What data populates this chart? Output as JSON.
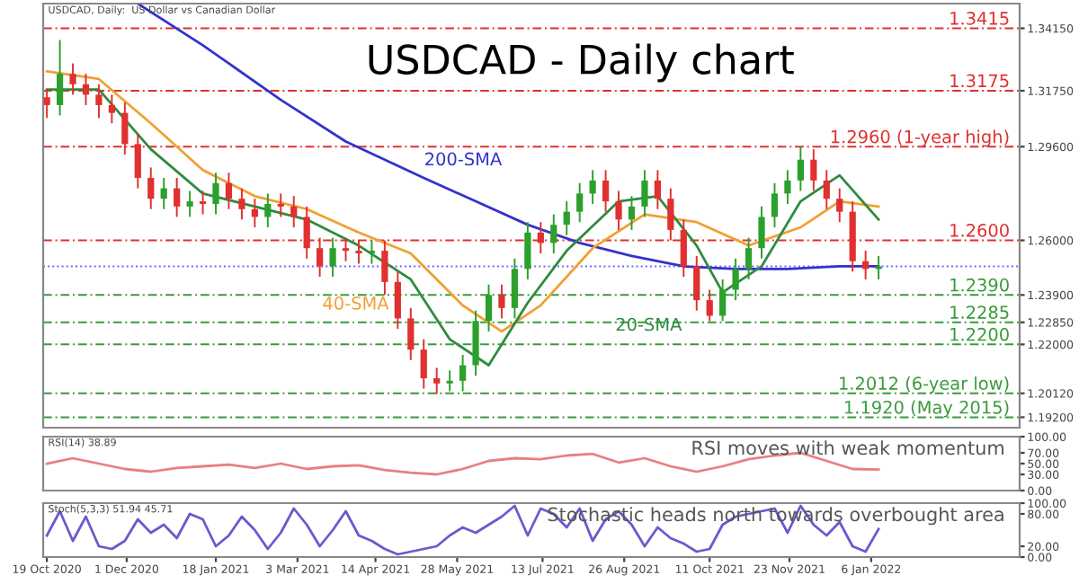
{
  "chart_data": [
    {
      "type": "candlestick",
      "title": "USDCAD - Daily chart",
      "subtitle": "USDCAD, Daily:  US Dollar vs Canadian Dollar",
      "tick_labels": "y",
      "grid": false,
      "legend": false,
      "xlim": [
        "2020-10-17",
        "2022-03-27"
      ],
      "ylim": [
        1.188,
        1.351
      ],
      "yticks": [
        {
          "value": 1.3415,
          "label": "1.34150"
        },
        {
          "value": 1.3175,
          "label": "1.31750"
        },
        {
          "value": 1.296,
          "label": "1.29600"
        },
        {
          "value": 1.26,
          "label": "1.26000"
        },
        {
          "value": 1.239,
          "label": "1.23900"
        },
        {
          "value": 1.2285,
          "label": "1.22850"
        },
        {
          "value": 1.22,
          "label": "1.22000"
        },
        {
          "value": 1.2012,
          "label": "1.20120"
        },
        {
          "value": 1.192,
          "label": "1.19200"
        }
      ],
      "x": [
        "2020-10-19",
        "2020-10-26",
        "2020-11-02",
        "2020-11-09",
        "2020-11-16",
        "2020-11-23",
        "2020-11-30",
        "2020-12-07",
        "2020-12-14",
        "2020-12-21",
        "2020-12-28",
        "2021-01-04",
        "2021-01-11",
        "2021-01-18",
        "2021-01-25",
        "2021-02-01",
        "2021-02-08",
        "2021-02-15",
        "2021-02-22",
        "2021-03-01",
        "2021-03-08",
        "2021-03-15",
        "2021-03-22",
        "2021-03-29",
        "2021-04-05",
        "2021-04-12",
        "2021-04-19",
        "2021-04-26",
        "2021-05-03",
        "2021-05-10",
        "2021-05-17",
        "2021-05-24",
        "2021-05-31",
        "2021-06-07",
        "2021-06-14",
        "2021-06-21",
        "2021-06-28",
        "2021-07-05",
        "2021-07-12",
        "2021-07-19",
        "2021-07-26",
        "2021-08-02",
        "2021-08-09",
        "2021-08-16",
        "2021-08-23",
        "2021-08-30",
        "2021-09-06",
        "2021-09-13",
        "2021-09-20",
        "2021-09-27",
        "2021-10-04",
        "2021-10-11",
        "2021-10-18",
        "2021-10-25",
        "2021-11-01",
        "2021-11-08",
        "2021-11-15",
        "2021-11-22",
        "2021-11-29",
        "2021-12-06",
        "2021-12-13",
        "2021-12-20",
        "2021-12-27",
        "2022-01-03",
        "2022-01-10"
      ],
      "ohlc": [
        [
          1.315,
          1.318,
          1.307,
          1.312
        ],
        [
          1.312,
          1.337,
          1.308,
          1.324
        ],
        [
          1.324,
          1.328,
          1.316,
          1.32
        ],
        [
          1.32,
          1.324,
          1.312,
          1.316
        ],
        [
          1.316,
          1.32,
          1.307,
          1.312
        ],
        [
          1.312,
          1.316,
          1.305,
          1.309
        ],
        [
          1.309,
          1.313,
          1.293,
          1.297
        ],
        [
          1.297,
          1.301,
          1.28,
          1.284
        ],
        [
          1.284,
          1.288,
          1.272,
          1.276
        ],
        [
          1.276,
          1.284,
          1.272,
          1.28
        ],
        [
          1.28,
          1.284,
          1.269,
          1.273
        ],
        [
          1.273,
          1.279,
          1.269,
          1.275
        ],
        [
          1.275,
          1.279,
          1.27,
          1.274
        ],
        [
          1.274,
          1.286,
          1.27,
          1.282
        ],
        [
          1.282,
          1.286,
          1.272,
          1.276
        ],
        [
          1.276,
          1.28,
          1.268,
          1.272
        ],
        [
          1.272,
          1.276,
          1.265,
          1.269
        ],
        [
          1.269,
          1.278,
          1.265,
          1.274
        ],
        [
          1.274,
          1.278,
          1.269,
          1.273
        ],
        [
          1.273,
          1.277,
          1.265,
          1.269
        ],
        [
          1.269,
          1.273,
          1.253,
          1.257
        ],
        [
          1.257,
          1.261,
          1.246,
          1.25
        ],
        [
          1.25,
          1.261,
          1.246,
          1.257
        ],
        [
          1.257,
          1.261,
          1.252,
          1.256
        ],
        [
          1.256,
          1.26,
          1.251,
          1.255
        ],
        [
          1.255,
          1.26,
          1.251,
          1.256
        ],
        [
          1.256,
          1.26,
          1.239,
          1.244
        ],
        [
          1.244,
          1.248,
          1.226,
          1.23
        ],
        [
          1.23,
          1.234,
          1.214,
          1.218
        ],
        [
          1.218,
          1.222,
          1.203,
          1.207
        ],
        [
          1.207,
          1.211,
          1.201,
          1.205
        ],
        [
          1.205,
          1.21,
          1.202,
          1.206
        ],
        [
          1.206,
          1.216,
          1.202,
          1.212
        ],
        [
          1.212,
          1.233,
          1.208,
          1.229
        ],
        [
          1.229,
          1.243,
          1.225,
          1.239
        ],
        [
          1.239,
          1.243,
          1.23,
          1.234
        ],
        [
          1.234,
          1.253,
          1.23,
          1.249
        ],
        [
          1.249,
          1.267,
          1.245,
          1.263
        ],
        [
          1.263,
          1.267,
          1.255,
          1.259
        ],
        [
          1.259,
          1.27,
          1.255,
          1.266
        ],
        [
          1.266,
          1.275,
          1.262,
          1.271
        ],
        [
          1.271,
          1.282,
          1.267,
          1.278
        ],
        [
          1.278,
          1.287,
          1.274,
          1.283
        ],
        [
          1.283,
          1.287,
          1.271,
          1.275
        ],
        [
          1.275,
          1.279,
          1.264,
          1.268
        ],
        [
          1.268,
          1.277,
          1.264,
          1.273
        ],
        [
          1.273,
          1.287,
          1.269,
          1.283
        ],
        [
          1.283,
          1.287,
          1.272,
          1.276
        ],
        [
          1.276,
          1.28,
          1.26,
          1.264
        ],
        [
          1.264,
          1.268,
          1.246,
          1.25
        ],
        [
          1.25,
          1.254,
          1.233,
          1.237
        ],
        [
          1.237,
          1.241,
          1.229,
          1.231
        ],
        [
          1.231,
          1.245,
          1.229,
          1.241
        ],
        [
          1.241,
          1.253,
          1.237,
          1.249
        ],
        [
          1.249,
          1.261,
          1.245,
          1.257
        ],
        [
          1.257,
          1.273,
          1.253,
          1.269
        ],
        [
          1.269,
          1.282,
          1.265,
          1.278
        ],
        [
          1.278,
          1.287,
          1.274,
          1.283
        ],
        [
          1.283,
          1.296,
          1.279,
          1.291
        ],
        [
          1.291,
          1.295,
          1.279,
          1.283
        ],
        [
          1.283,
          1.287,
          1.272,
          1.276
        ],
        [
          1.276,
          1.28,
          1.267,
          1.271
        ],
        [
          1.271,
          1.275,
          1.248,
          1.252
        ],
        [
          1.252,
          1.256,
          1.245,
          1.249
        ],
        [
          1.249,
          1.254,
          1.245,
          1.25
        ]
      ],
      "colors": [
        "#e0302f",
        "#2ca02c",
        "#e0302f",
        "#e0302f",
        "#e0302f",
        "#e0302f",
        "#e0302f",
        "#e0302f",
        "#e0302f",
        "#2ca02c",
        "#e0302f",
        "#2ca02c",
        "#e0302f",
        "#2ca02c",
        "#e0302f",
        "#e0302f",
        "#e0302f",
        "#2ca02c",
        "#e0302f",
        "#e0302f",
        "#e0302f",
        "#e0302f",
        "#2ca02c",
        "#e0302f",
        "#e0302f",
        "#2ca02c",
        "#e0302f",
        "#e0302f",
        "#e0302f",
        "#e0302f",
        "#e0302f",
        "#2ca02c",
        "#2ca02c",
        "#2ca02c",
        "#2ca02c",
        "#e0302f",
        "#2ca02c",
        "#2ca02c",
        "#e0302f",
        "#2ca02c",
        "#2ca02c",
        "#2ca02c",
        "#2ca02c",
        "#e0302f",
        "#e0302f",
        "#2ca02c",
        "#2ca02c",
        "#e0302f",
        "#e0302f",
        "#e0302f",
        "#e0302f",
        "#e0302f",
        "#2ca02c",
        "#2ca02c",
        "#2ca02c",
        "#2ca02c",
        "#2ca02c",
        "#2ca02c",
        "#2ca02c",
        "#e0302f",
        "#e0302f",
        "#e0302f",
        "#e0302f",
        "#e0302f",
        "#2ca02c"
      ],
      "series": [
        {
          "type": "line",
          "color": "#3333cc",
          "x": [
            "2020-12-07",
            "2021-01-11",
            "2021-02-22",
            "2021-03-29",
            "2021-05-10",
            "2021-06-07",
            "2021-07-05",
            "2021-08-02",
            "2021-08-30",
            "2021-09-27",
            "2021-10-25",
            "2021-11-22",
            "2021-12-20",
            "2022-01-10"
          ],
          "values": [
            1.351,
            1.335,
            1.314,
            1.298,
            1.284,
            1.275,
            1.266,
            1.259,
            1.254,
            1.25,
            1.249,
            1.249,
            1.25,
            1.25
          ]
        },
        {
          "type": "line",
          "color": "#f0a030",
          "x": [
            "2020-10-19",
            "2020-11-16",
            "2020-12-14",
            "2021-01-11",
            "2021-02-08",
            "2021-03-08",
            "2021-04-05",
            "2021-05-03",
            "2021-05-31",
            "2021-06-21",
            "2021-07-12",
            "2021-08-09",
            "2021-09-06",
            "2021-10-04",
            "2021-11-01",
            "2021-11-29",
            "2021-12-20",
            "2022-01-10"
          ],
          "values": [
            1.325,
            1.322,
            1.305,
            1.287,
            1.277,
            1.272,
            1.263,
            1.255,
            1.235,
            1.225,
            1.235,
            1.257,
            1.27,
            1.267,
            1.258,
            1.265,
            1.275,
            1.273
          ]
        },
        {
          "type": "line",
          "color": "#2e8b3e",
          "x": [
            "2020-10-19",
            "2020-11-16",
            "2020-12-14",
            "2021-01-11",
            "2021-02-08",
            "2021-03-08",
            "2021-04-05",
            "2021-05-03",
            "2021-05-24",
            "2021-06-14",
            "2021-07-05",
            "2021-07-26",
            "2021-08-23",
            "2021-09-13",
            "2021-10-04",
            "2021-10-18",
            "2021-11-08",
            "2021-11-29",
            "2021-12-20",
            "2022-01-10"
          ],
          "values": [
            1.318,
            1.318,
            1.295,
            1.278,
            1.273,
            1.268,
            1.258,
            1.245,
            1.222,
            1.212,
            1.236,
            1.256,
            1.275,
            1.277,
            1.258,
            1.24,
            1.25,
            1.275,
            1.285,
            1.268
          ]
        }
      ],
      "annotations": [
        "200-SMA",
        "40-SMA",
        "20-SMA"
      ],
      "ref_lines": [
        {
          "axis": "y",
          "value": 1.3415,
          "label": "1.3415",
          "color": "#e0302f",
          "line_style": "dashed"
        },
        {
          "axis": "y",
          "value": 1.3175,
          "label": "1.3175",
          "color": "#e0302f",
          "line_style": "dashed"
        },
        {
          "axis": "y",
          "value": 1.296,
          "label": "1.2960 (1-year high)",
          "color": "#e0302f",
          "line_style": "dashed"
        },
        {
          "axis": "y",
          "value": 1.26,
          "label": "1.2600",
          "color": "#e0302f",
          "line_style": "dashed"
        },
        {
          "axis": "y",
          "value": 1.25,
          "label": null,
          "color": "#6666ff",
          "line_style": "dotted"
        },
        {
          "axis": "y",
          "value": 1.239,
          "label": "1.2390",
          "color": "#3a9a3a",
          "line_style": "dashed"
        },
        {
          "axis": "y",
          "value": 1.2285,
          "label": "1.2285",
          "color": "#3a9a3a",
          "line_style": "dashed"
        },
        {
          "axis": "y",
          "value": 1.22,
          "label": "1.2200",
          "color": "#3a9a3a",
          "line_style": "dashed"
        },
        {
          "axis": "y",
          "value": 1.2012,
          "label": "1.2012 (6-year low)",
          "color": "#3a9a3a",
          "line_style": "dashed"
        },
        {
          "axis": "y",
          "value": 1.192,
          "label": "1.1920 (May 2015)",
          "color": "#3a9a3a",
          "line_style": "dashed"
        }
      ]
    },
    {
      "type": "line",
      "title": "RSI(14) 38.89",
      "tick_labels": "y",
      "grid": false,
      "legend": false,
      "xlim": [
        "2020-10-17",
        "2022-03-27"
      ],
      "ylim": [
        0,
        100
      ],
      "yticks": [
        {
          "value": 100,
          "label": "100.00"
        },
        {
          "value": 70,
          "label": "70.00"
        },
        {
          "value": 50,
          "label": "50.00"
        },
        {
          "value": 30,
          "label": "30.00"
        },
        {
          "value": 0,
          "label": "0.00"
        }
      ],
      "x": [
        "2020-10-19",
        "2020-11-02",
        "2020-11-16",
        "2020-11-30",
        "2020-12-14",
        "2020-12-28",
        "2021-01-11",
        "2021-01-25",
        "2021-02-08",
        "2021-02-22",
        "2021-03-08",
        "2021-03-22",
        "2021-04-05",
        "2021-04-19",
        "2021-05-03",
        "2021-05-17",
        "2021-05-31",
        "2021-06-14",
        "2021-06-28",
        "2021-07-12",
        "2021-07-26",
        "2021-08-09",
        "2021-08-23",
        "2021-09-06",
        "2021-09-20",
        "2021-10-04",
        "2021-10-18",
        "2021-11-01",
        "2021-11-15",
        "2021-11-29",
        "2021-12-13",
        "2021-12-27",
        "2022-01-10"
      ],
      "series": [
        {
          "color": "#e88080",
          "values": [
            50,
            60,
            50,
            40,
            35,
            42,
            45,
            48,
            42,
            50,
            40,
            45,
            47,
            38,
            33,
            30,
            40,
            55,
            60,
            58,
            65,
            68,
            52,
            60,
            45,
            35,
            45,
            58,
            65,
            70,
            55,
            40,
            39
          ]
        }
      ],
      "annotations": [
        "RSI moves with weak momentum"
      ]
    },
    {
      "type": "line",
      "title": "Stoch(5,3,3) 51.94 45.71",
      "grid": false,
      "legend": false,
      "xlim": [
        "2020-10-17",
        "2022-03-27"
      ],
      "ylim": [
        0,
        100
      ],
      "yticks": [
        {
          "value": 100,
          "label": "100.00"
        },
        {
          "value": 80,
          "label": "80.00"
        },
        {
          "value": 20,
          "label": "20.00"
        },
        {
          "value": 0,
          "label": "0.00"
        }
      ],
      "xticks": [
        {
          "value": "2020-10-19",
          "label": "19 Oct 2020"
        },
        {
          "value": "2020-12-01",
          "label": "1 Dec 2020"
        },
        {
          "value": "2021-01-18",
          "label": "18 Jan 2021"
        },
        {
          "value": "2021-03-03",
          "label": "3 Mar 2021"
        },
        {
          "value": "2021-04-14",
          "label": "14 Apr 2021"
        },
        {
          "value": "2021-05-28",
          "label": "28 May 2021"
        },
        {
          "value": "2021-07-13",
          "label": "13 Jul 2021"
        },
        {
          "value": "2021-08-26",
          "label": "26 Aug 2021"
        },
        {
          "value": "2021-10-11",
          "label": "11 Oct 2021"
        },
        {
          "value": "2021-11-23",
          "label": "23 Nov 2021"
        },
        {
          "value": "2022-01-06",
          "label": "6 Jan 2022"
        }
      ],
      "x": [
        "2020-10-19",
        "2020-10-26",
        "2020-11-02",
        "2020-11-09",
        "2020-11-16",
        "2020-11-23",
        "2020-11-30",
        "2020-12-07",
        "2020-12-14",
        "2020-12-21",
        "2020-12-28",
        "2021-01-04",
        "2021-01-11",
        "2021-01-18",
        "2021-01-25",
        "2021-02-01",
        "2021-02-08",
        "2021-02-15",
        "2021-02-22",
        "2021-03-01",
        "2021-03-08",
        "2021-03-15",
        "2021-03-22",
        "2021-03-29",
        "2021-04-05",
        "2021-04-12",
        "2021-04-19",
        "2021-04-26",
        "2021-05-03",
        "2021-05-10",
        "2021-05-17",
        "2021-05-24",
        "2021-05-31",
        "2021-06-07",
        "2021-06-14",
        "2021-06-21",
        "2021-06-28",
        "2021-07-05",
        "2021-07-12",
        "2021-07-19",
        "2021-07-26",
        "2021-08-02",
        "2021-08-09",
        "2021-08-16",
        "2021-08-23",
        "2021-08-30",
        "2021-09-06",
        "2021-09-13",
        "2021-09-20",
        "2021-09-27",
        "2021-10-04",
        "2021-10-11",
        "2021-10-18",
        "2021-10-25",
        "2021-11-01",
        "2021-11-08",
        "2021-11-15",
        "2021-11-22",
        "2021-11-29",
        "2021-12-06",
        "2021-12-13",
        "2021-12-20",
        "2021-12-27",
        "2022-01-03",
        "2022-01-10"
      ],
      "series": [
        {
          "color": "#6a5acd",
          "values": [
            40,
            85,
            30,
            75,
            20,
            15,
            30,
            70,
            45,
            60,
            35,
            80,
            70,
            20,
            40,
            75,
            50,
            15,
            45,
            90,
            60,
            20,
            50,
            85,
            40,
            30,
            15,
            5,
            10,
            15,
            20,
            40,
            55,
            45,
            60,
            75,
            95,
            40,
            90,
            80,
            55,
            90,
            30,
            70,
            85,
            60,
            20,
            55,
            35,
            25,
            10,
            15,
            60,
            75,
            80,
            85,
            90,
            45,
            95,
            60,
            40,
            65,
            20,
            10,
            52
          ]
        }
      ],
      "annotations": [
        "Stochastic heads north towards overbought area"
      ]
    }
  ]
}
